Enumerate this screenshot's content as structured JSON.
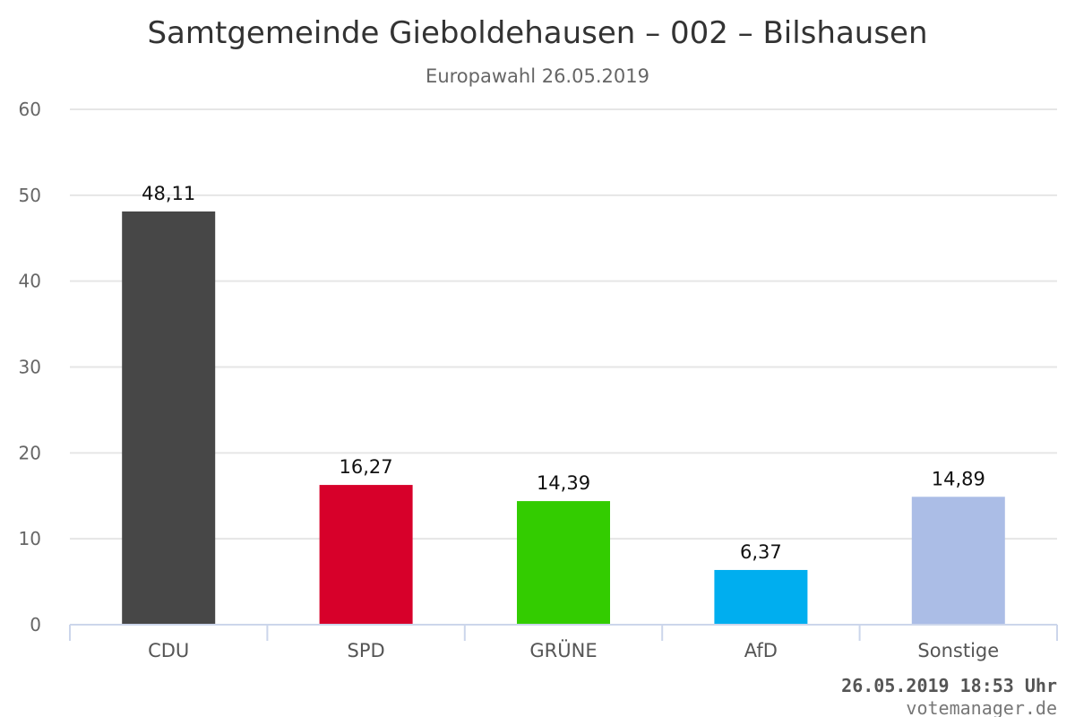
{
  "chart_data": {
    "type": "bar",
    "title": "Samtgemeinde Gieboldehausen – 002 – Bilshausen",
    "subtitle": "Europawahl 26.05.2019",
    "categories": [
      "CDU",
      "SPD",
      "GRÜNE",
      "AfD",
      "Sonstige"
    ],
    "values": [
      48.11,
      16.27,
      14.39,
      6.37,
      14.89
    ],
    "value_labels": [
      "48,11",
      "16,27",
      "14,39",
      "6,37",
      "14,89"
    ],
    "colors": [
      "#474747",
      "#d7002a",
      "#33cc00",
      "#00aeef",
      "#abbde6"
    ],
    "ylim": [
      0,
      60
    ],
    "yticks": [
      0,
      10,
      20,
      30,
      40,
      50,
      60
    ],
    "grid": true,
    "legend": "none",
    "xlabel": "",
    "ylabel": ""
  },
  "footer": {
    "timestamp": "26.05.2019 18:53 Uhr",
    "credit": "votemanager.de"
  }
}
